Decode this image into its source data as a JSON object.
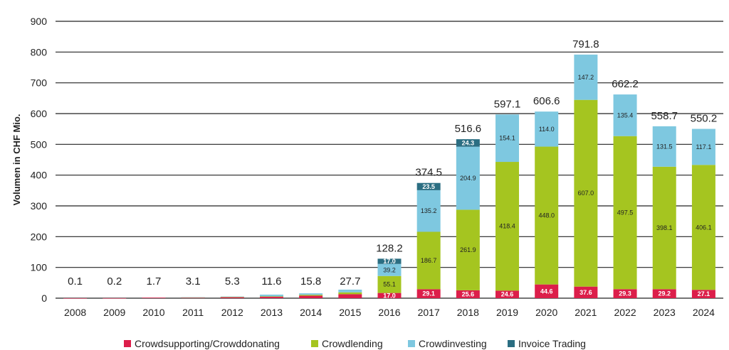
{
  "chart_data": {
    "type": "bar",
    "stacked": true,
    "title": "",
    "xlabel": "",
    "ylabel": "Volumen in CHF Mio.",
    "ylim": [
      0,
      900
    ],
    "yticks": [
      0,
      100,
      200,
      300,
      400,
      500,
      600,
      700,
      800,
      900
    ],
    "grid": true,
    "legend_position": "bottom",
    "categories": [
      "2008",
      "2009",
      "2010",
      "2011",
      "2012",
      "2013",
      "2014",
      "2015",
      "2016",
      "2017",
      "2018",
      "2019",
      "2020",
      "2021",
      "2022",
      "2023",
      "2024"
    ],
    "totals": [
      0.1,
      0.2,
      1.7,
      3.1,
      5.3,
      11.6,
      15.8,
      27.7,
      128.2,
      374.5,
      516.6,
      597.1,
      606.6,
      791.8,
      662.2,
      558.7,
      550.2
    ],
    "total_labels": [
      "0.1",
      "0.2",
      "1.7",
      "3.1",
      "5.3",
      "11.6",
      "15.8",
      "27.7",
      "128.2",
      "374.5",
      "516.6",
      "597.1",
      "606.6",
      "791.8",
      "662.2",
      "558.7",
      "550.2"
    ],
    "series": [
      {
        "name": "Crowdsupporting/Crowddonating",
        "color": "#dc1e4a",
        "values": [
          0.1,
          0.2,
          1.7,
          2.5,
          3.5,
          4.5,
          8.0,
          13.0,
          17.0,
          29.1,
          25.6,
          24.6,
          44.6,
          37.6,
          29.3,
          29.2,
          27.1
        ],
        "labels": [
          "",
          "",
          "",
          "",
          "",
          "",
          "",
          "",
          "17.0",
          "29.1",
          "25.6",
          "24.6",
          "44.6",
          "37.6",
          "29.3",
          "29.2",
          "27.1"
        ]
      },
      {
        "name": "Crowdlending",
        "color": "#a5c520",
        "values": [
          0,
          0,
          0,
          0.3,
          0.8,
          1.5,
          3.0,
          6.0,
          55.1,
          186.7,
          261.9,
          418.4,
          448.0,
          607.0,
          497.5,
          398.1,
          406.1
        ],
        "labels": [
          "",
          "",
          "",
          "",
          "",
          "",
          "",
          "",
          "55.1",
          "186.7",
          "261.9",
          "418.4",
          "448.0",
          "607.0",
          "497.5",
          "398.1",
          "406.1"
        ]
      },
      {
        "name": "Crowdinvesting",
        "color": "#7ec8e0",
        "values": [
          0,
          0,
          0,
          0.3,
          1.0,
          5.6,
          4.8,
          8.7,
          39.2,
          135.2,
          204.9,
          154.1,
          114.0,
          147.2,
          135.4,
          131.5,
          117.1
        ],
        "labels": [
          "",
          "",
          "",
          "",
          "",
          "",
          "",
          "",
          "39.2",
          "135.2",
          "204.9",
          "154.1",
          "114.0",
          "147.2",
          "135.4",
          "131.5",
          "117.1"
        ]
      },
      {
        "name": "Invoice Trading",
        "color": "#2b6e82",
        "values": [
          0,
          0,
          0,
          0,
          0,
          0,
          0,
          0,
          17.0,
          23.5,
          24.3,
          0,
          0,
          0,
          0,
          0,
          0
        ],
        "labels": [
          "",
          "",
          "",
          "",
          "",
          "",
          "",
          "",
          "17.0",
          "23.5",
          "24.3",
          "",
          "",
          "",
          "",
          "",
          ""
        ]
      }
    ]
  }
}
